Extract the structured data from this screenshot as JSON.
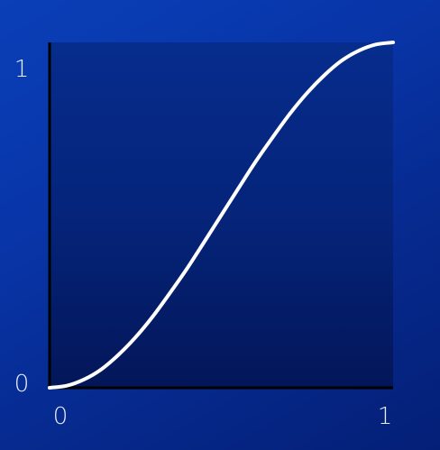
{
  "chart_data": {
    "type": "line",
    "title": "",
    "xlabel": "",
    "ylabel": "",
    "xlim": [
      0,
      1
    ],
    "ylim": [
      0,
      1
    ],
    "x_ticks": [
      "0",
      "1"
    ],
    "y_ticks": [
      "0",
      "1"
    ],
    "grid": false,
    "series": [
      {
        "x": [
          0,
          0.05,
          0.1,
          0.15,
          0.2,
          0.25,
          0.3,
          0.35,
          0.4,
          0.45,
          0.5,
          0.55,
          0.6,
          0.65,
          0.7,
          0.75,
          0.8,
          0.85,
          0.9,
          0.95,
          1
        ],
        "y": [
          0,
          0.006,
          0.024,
          0.053,
          0.095,
          0.146,
          0.206,
          0.274,
          0.345,
          0.422,
          0.5,
          0.578,
          0.655,
          0.726,
          0.794,
          0.854,
          0.905,
          0.947,
          0.976,
          0.994,
          1
        ],
        "color": "#ffffff"
      }
    ],
    "colors": {
      "background": "#0835a8",
      "axis": "#000000",
      "curve": "#ffffff",
      "label": "#ffffff"
    }
  }
}
